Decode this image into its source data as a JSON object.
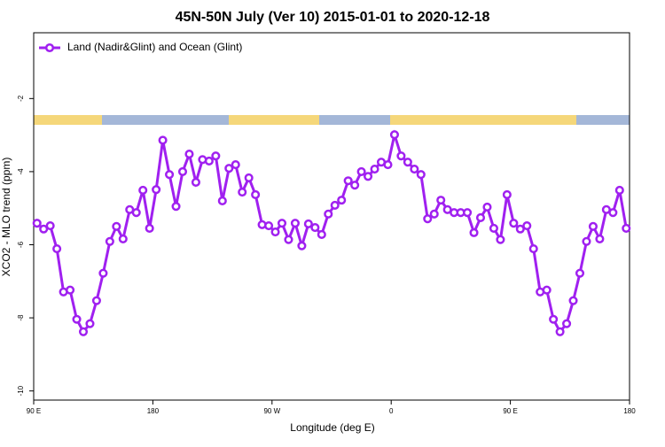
{
  "chart_data": {
    "type": "line",
    "title": "45N-50N July (Ver 10)   2015-01-01 to 2020-12-18",
    "x_label": "Longitude (deg E)",
    "y_label": "XCO2 - MLO trend (ppm)",
    "legend_position": "top-left",
    "xlim": [
      90,
      540
    ],
    "ylim": [
      -10.25,
      -0.2
    ],
    "xticks": [
      {
        "value": 90,
        "label": "90 E"
      },
      180,
      {
        "value": 270,
        "label": "90 W"
      },
      {
        "value": 360,
        "label": "0"
      },
      {
        "value": 450,
        "label": "90 E"
      },
      {
        "value": 540,
        "label": "180"
      }
    ],
    "yticks": [
      -10,
      -8,
      -6,
      -4,
      -2
    ],
    "x": [
      92.5,
      97.5,
      102.5,
      107.5,
      112.5,
      117.5,
      122.5,
      127.5,
      132.5,
      137.5,
      142.5,
      147.5,
      152.5,
      157.5,
      162.5,
      167.5,
      172.5,
      177.5,
      182.5,
      187.5,
      192.5,
      197.5,
      202.5,
      207.5,
      212.5,
      217.5,
      222.5,
      227.5,
      232.5,
      237.5,
      242.5,
      247.5,
      252.5,
      257.5,
      262.5,
      267.5,
      272.5,
      277.5,
      282.5,
      287.5,
      292.5,
      297.5,
      302.5,
      307.5,
      312.5,
      317.5,
      322.5,
      327.5,
      332.5,
      337.5,
      342.5,
      347.5,
      352.5,
      357.5,
      362.5,
      367.5,
      372.5,
      377.5,
      382.5,
      387.5,
      392.5,
      397.5,
      402.5,
      407.5,
      412.5,
      417.5,
      422.5,
      427.5,
      432.5,
      437.5,
      442.5,
      447.5,
      452.5,
      457.5,
      462.5,
      467.5,
      472.5,
      477.5,
      482.5,
      487.5,
      492.5,
      497.5,
      502.5,
      507.5,
      512.5,
      517.5,
      522.5,
      527.5,
      532.5,
      537.5
    ],
    "series": [
      {
        "name": "Land (Nadir&Glint) and Ocean (Glint)",
        "color": "#a020f0",
        "values": [
          -5.41,
          -5.57,
          -5.48,
          -6.11,
          -7.29,
          -7.24,
          -8.04,
          -8.38,
          -8.16,
          -7.53,
          -6.78,
          -5.91,
          -5.5,
          -5.84,
          -5.04,
          -5.12,
          -4.51,
          -5.55,
          -4.49,
          -3.14,
          -4.08,
          -4.95,
          -4.0,
          -3.52,
          -4.29,
          -3.67,
          -3.71,
          -3.57,
          -4.8,
          -3.91,
          -3.81,
          -4.56,
          -4.17,
          -4.63,
          -5.45,
          -5.48,
          -5.65,
          -5.41,
          -5.86,
          -5.41,
          -6.03,
          -5.43,
          -5.53,
          -5.72,
          -5.16,
          -4.92,
          -4.78,
          -4.25,
          -4.37,
          -4.0,
          -4.13,
          -3.93,
          -3.74,
          -3.81,
          -2.99,
          -3.57,
          -3.74,
          -3.93,
          -4.08,
          -5.29,
          -5.16,
          -4.78,
          -5.04,
          -5.12,
          -5.12,
          -5.12,
          -5.67,
          -5.26,
          -4.97,
          -5.55,
          -5.86,
          -4.63,
          -5.41,
          -5.57,
          -5.48,
          -6.11,
          -7.29,
          -7.24,
          -8.04,
          -8.38,
          -8.16,
          -7.53,
          -6.78,
          -5.91,
          -5.5,
          -5.84,
          -5.04,
          -5.12,
          -4.51,
          -5.55
        ]
      }
    ]
  }
}
